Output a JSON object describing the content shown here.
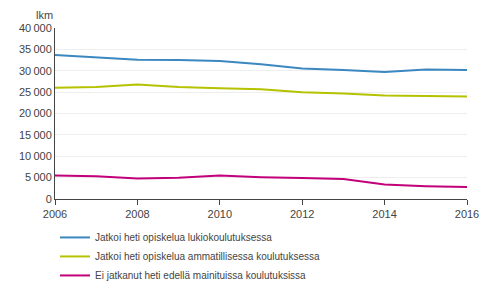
{
  "chart_data": {
    "type": "line",
    "x": [
      2006,
      2007,
      2008,
      2009,
      2010,
      2011,
      2012,
      2013,
      2014,
      2015,
      2016
    ],
    "series": [
      {
        "name": "Jatkoi heti opiskelua lukiokoulutuksessa",
        "color": "#3b87c0",
        "values": [
          33700,
          33200,
          32600,
          32500,
          32300,
          31500,
          30500,
          30200,
          29700,
          30300,
          30200
        ]
      },
      {
        "name": "Jatkoi heti opiskelua ammatillisessa koulutuksessa",
        "color": "#b5c200",
        "values": [
          26000,
          26200,
          26800,
          26200,
          25900,
          25700,
          25000,
          24700,
          24200,
          24100,
          24000
        ]
      },
      {
        "name": "Ei jatkanut heti edellä mainituissa koulutuksissa",
        "color": "#c2007a",
        "values": [
          5500,
          5300,
          4800,
          5000,
          5500,
          5100,
          4900,
          4700,
          3400,
          3000,
          2800
        ]
      }
    ],
    "ylabel": "lkm",
    "xlim": [
      2006,
      2016
    ],
    "xticks": [
      2006,
      2008,
      2010,
      2012,
      2014,
      2016
    ],
    "ylim": [
      0,
      40000
    ],
    "yticks": [
      0,
      {
        "value": 5000,
        "label": "5 000"
      },
      {
        "value": 10000,
        "label": "10 000"
      },
      {
        "value": 15000,
        "label": "15 000"
      },
      {
        "value": 20000,
        "label": "20 000"
      },
      {
        "value": 25000,
        "label": "25 000"
      },
      {
        "value": 30000,
        "label": "30 000"
      },
      {
        "value": 35000,
        "label": "35 000"
      },
      {
        "value": 40000,
        "label": "40 000"
      }
    ],
    "grid": "y",
    "legend": "bottom"
  }
}
